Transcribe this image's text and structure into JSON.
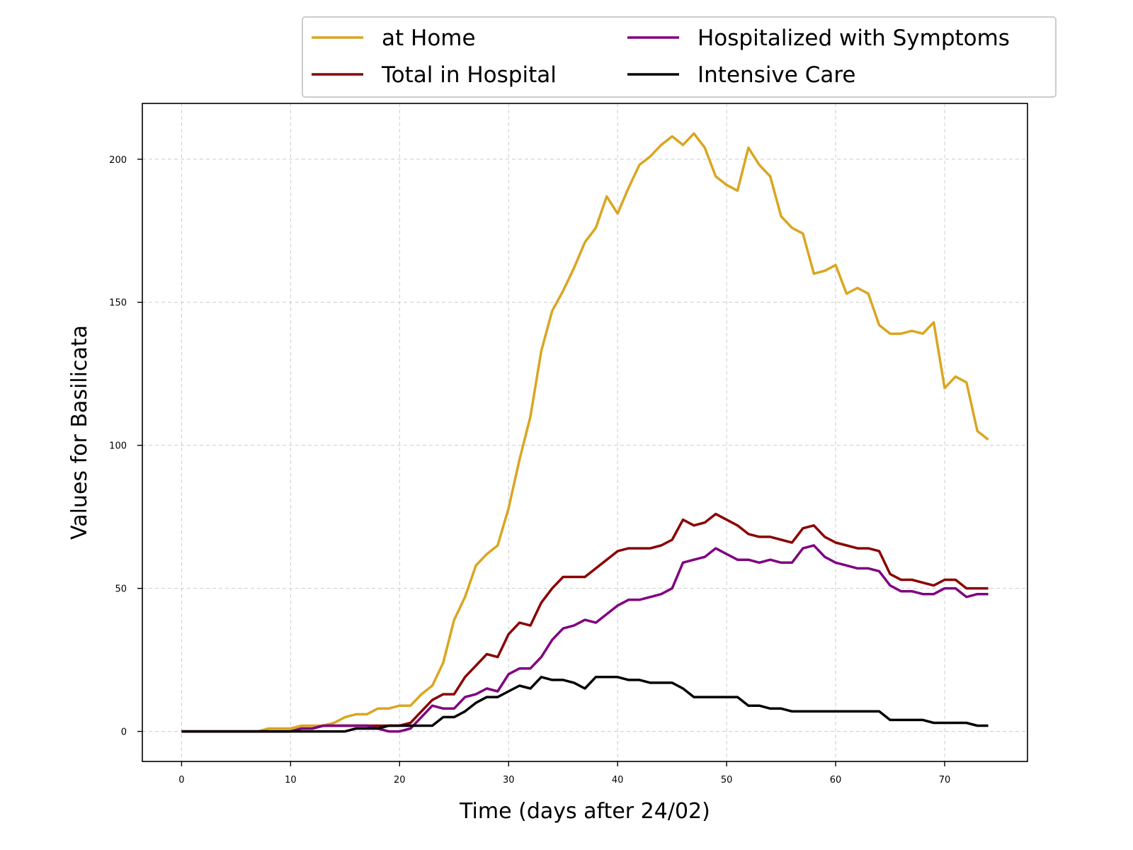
{
  "chart_data": {
    "type": "line",
    "xlabel": "Time (days after 24/02)",
    "ylabel": "Values for Basilicata",
    "xlim": [
      -3.6,
      77.6
    ],
    "ylim": [
      -10.5,
      219.5
    ],
    "x_ticks": [
      0,
      10,
      20,
      30,
      40,
      50,
      60,
      70
    ],
    "y_ticks": [
      0,
      50,
      100,
      150,
      200
    ],
    "grid": true,
    "legend_position": "top-right, above plot",
    "x": [
      0,
      1,
      2,
      3,
      4,
      5,
      6,
      7,
      8,
      9,
      10,
      11,
      12,
      13,
      14,
      15,
      16,
      17,
      18,
      19,
      20,
      21,
      22,
      23,
      24,
      25,
      26,
      27,
      28,
      29,
      30,
      31,
      32,
      33,
      34,
      35,
      36,
      37,
      38,
      39,
      40,
      41,
      42,
      43,
      44,
      45,
      46,
      47,
      48,
      49,
      50,
      51,
      52,
      53,
      54,
      55,
      56,
      57,
      58,
      59,
      60,
      61,
      62,
      63,
      64,
      65,
      66,
      67,
      68,
      69,
      70,
      71,
      72,
      73,
      74
    ],
    "series": [
      {
        "name": "at Home",
        "color": "#daa520",
        "values": [
          0,
          0,
          0,
          0,
          0,
          0,
          0,
          0,
          1,
          1,
          1,
          2,
          2,
          2,
          3,
          5,
          6,
          6,
          8,
          8,
          9,
          9,
          13,
          16,
          24,
          39,
          47,
          58,
          62,
          65,
          78,
          95,
          110,
          133,
          147,
          154,
          162,
          171,
          176,
          187,
          181,
          190,
          198,
          201,
          205,
          208,
          205,
          209,
          204,
          194,
          191,
          189,
          204,
          198,
          194,
          180,
          176,
          174,
          160,
          161,
          163,
          153,
          155,
          153,
          142,
          139,
          139,
          140,
          139,
          143,
          120,
          124,
          122,
          105,
          102
        ]
      },
      {
        "name": "Total in Hospital",
        "color": "#8b0000",
        "values": [
          0,
          0,
          0,
          0,
          0,
          0,
          0,
          0,
          0,
          0,
          0,
          1,
          1,
          2,
          2,
          2,
          2,
          2,
          2,
          2,
          2,
          3,
          7,
          11,
          13,
          13,
          19,
          23,
          27,
          26,
          34,
          38,
          37,
          45,
          50,
          54,
          54,
          54,
          57,
          60,
          63,
          64,
          64,
          64,
          65,
          67,
          74,
          72,
          73,
          76,
          74,
          72,
          69,
          68,
          68,
          67,
          66,
          71,
          72,
          68,
          66,
          65,
          64,
          64,
          63,
          55,
          53,
          53,
          52,
          51,
          53,
          53,
          50,
          50,
          50
        ]
      },
      {
        "name": "Hospitalized with Symptoms",
        "color": "#800080",
        "values": [
          0,
          0,
          0,
          0,
          0,
          0,
          0,
          0,
          0,
          0,
          0,
          1,
          1,
          2,
          2,
          2,
          2,
          2,
          1,
          0,
          0,
          1,
          5,
          9,
          8,
          8,
          12,
          13,
          15,
          14,
          20,
          22,
          22,
          26,
          32,
          36,
          37,
          39,
          38,
          41,
          44,
          46,
          46,
          47,
          48,
          50,
          59,
          60,
          61,
          64,
          62,
          60,
          60,
          59,
          60,
          59,
          59,
          64,
          65,
          61,
          59,
          58,
          57,
          57,
          56,
          51,
          49,
          49,
          48,
          48,
          50,
          50,
          47,
          48,
          48
        ]
      },
      {
        "name": "Intensive Care",
        "color": "#000000",
        "values": [
          0,
          0,
          0,
          0,
          0,
          0,
          0,
          0,
          0,
          0,
          0,
          0,
          0,
          0,
          0,
          0,
          1,
          1,
          1,
          2,
          2,
          2,
          2,
          2,
          5,
          5,
          7,
          10,
          12,
          12,
          14,
          16,
          15,
          19,
          18,
          18,
          17,
          15,
          19,
          19,
          19,
          18,
          18,
          17,
          17,
          17,
          15,
          12,
          12,
          12,
          12,
          12,
          9,
          9,
          8,
          8,
          7,
          7,
          7,
          7,
          7,
          7,
          7,
          7,
          7,
          4,
          4,
          4,
          4,
          3,
          3,
          3,
          3,
          2,
          2
        ]
      }
    ]
  }
}
